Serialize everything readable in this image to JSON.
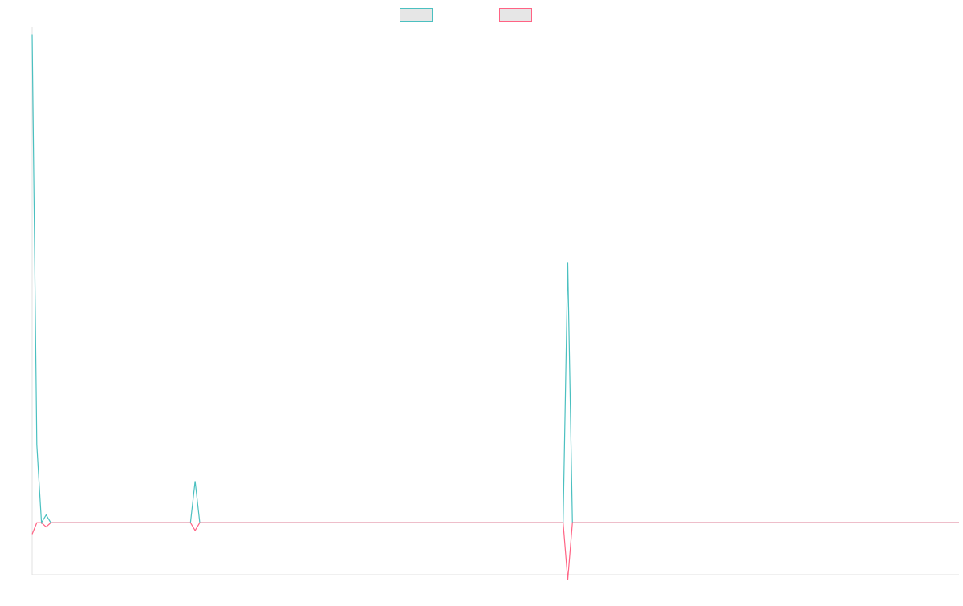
{
  "chart_data": {
    "type": "line",
    "title": "",
    "xlabel": "",
    "ylabel": "",
    "grid": false,
    "legend_position": "top",
    "x_count": 200,
    "ylim": [
      -100,
      950
    ],
    "series": [
      {
        "color": "#4bc0c0",
        "legend_fill": "#e6e6e6",
        "baseline": 0,
        "points": [
          [
            0,
            940
          ],
          [
            1,
            150
          ],
          [
            2,
            0
          ],
          [
            3,
            15
          ],
          [
            4,
            0
          ],
          [
            34,
            0
          ],
          [
            35,
            80
          ],
          [
            36,
            0
          ],
          [
            114,
            0
          ],
          [
            115,
            500
          ],
          [
            116,
            0
          ],
          [
            199,
            0
          ]
        ]
      },
      {
        "color": "#ff6384",
        "legend_fill": "#e6e6e6",
        "baseline": 0,
        "points": [
          [
            0,
            -22
          ],
          [
            1,
            0
          ],
          [
            2,
            0
          ],
          [
            3,
            -8
          ],
          [
            4,
            0
          ],
          [
            34,
            0
          ],
          [
            35,
            -15
          ],
          [
            36,
            0
          ],
          [
            114,
            0
          ],
          [
            115,
            -110
          ],
          [
            116,
            0
          ],
          [
            199,
            0
          ]
        ]
      }
    ]
  }
}
